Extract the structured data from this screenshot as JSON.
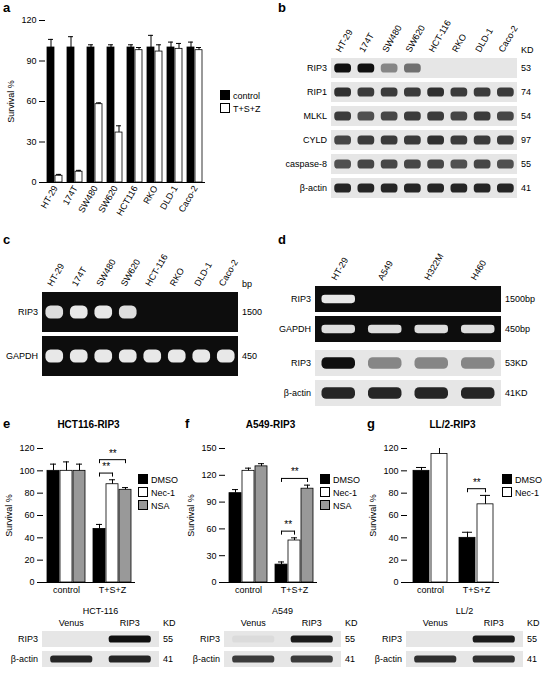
{
  "chart_data": [
    {
      "panel": "a",
      "type": "bar",
      "y_label": "Survival %",
      "categories": [
        "HT-29",
        "174T",
        "SW480",
        "SW620",
        "HCT116",
        "RKO",
        "DLD-1",
        "Caco-2"
      ],
      "ylim": [
        0,
        120
      ],
      "yticks": [
        0,
        30,
        60,
        90,
        120
      ],
      "legend": "right",
      "series": [
        {
          "name": "control",
          "color": "#000000",
          "values": [
            100,
            100,
            100,
            100,
            100,
            100,
            100,
            100
          ],
          "errors": [
            6,
            8,
            2,
            2,
            2,
            9,
            4,
            4
          ]
        },
        {
          "name": "T+S+Z",
          "color": "#ffffff",
          "values": [
            5,
            8,
            58,
            37,
            98,
            97,
            99,
            98
          ],
          "errors": [
            1,
            1,
            1,
            5,
            2,
            5,
            4,
            2
          ]
        }
      ]
    },
    {
      "panel": "e",
      "type": "bar",
      "title": "HCT116-RIP3",
      "y_label": "Survival %",
      "categories": [
        "control",
        "T+S+Z"
      ],
      "ylim": [
        0,
        120
      ],
      "yticks": [
        0,
        20,
        40,
        60,
        80,
        100,
        120
      ],
      "legend": "right",
      "series": [
        {
          "name": "DMSO",
          "color": "#000000",
          "values": [
            100,
            48
          ],
          "errors": [
            6,
            4
          ]
        },
        {
          "name": "Nec-1",
          "color": "#ffffff",
          "values": [
            100,
            88
          ],
          "errors": [
            8,
            4
          ]
        },
        {
          "name": "NSA",
          "color": "#999999",
          "values": [
            100,
            83
          ],
          "errors": [
            6,
            2
          ]
        }
      ],
      "annotations": [
        {
          "text": "**",
          "category": "T+S+Z",
          "between": [
            "DMSO",
            "Nec-1"
          ]
        },
        {
          "text": "**",
          "category": "T+S+Z",
          "between": [
            "DMSO",
            "NSA"
          ]
        }
      ]
    },
    {
      "panel": "f",
      "type": "bar",
      "title": "A549-RIP3",
      "y_label": "Survival %",
      "categories": [
        "control",
        "T+S+Z"
      ],
      "ylim": [
        0,
        150
      ],
      "yticks": [
        0,
        30,
        60,
        90,
        120,
        150
      ],
      "legend": "right",
      "series": [
        {
          "name": "DMSO",
          "color": "#000000",
          "values": [
            100,
            20
          ],
          "errors": [
            4,
            3
          ]
        },
        {
          "name": "Nec-1",
          "color": "#ffffff",
          "values": [
            125,
            47
          ],
          "errors": [
            3,
            3
          ]
        },
        {
          "name": "NSA",
          "color": "#999999",
          "values": [
            130,
            105
          ],
          "errors": [
            3,
            4
          ]
        }
      ],
      "annotations": [
        {
          "text": "**",
          "category": "T+S+Z",
          "between": [
            "DMSO",
            "Nec-1"
          ]
        },
        {
          "text": "**",
          "category": "T+S+Z",
          "between": [
            "DMSO",
            "NSA"
          ]
        }
      ]
    },
    {
      "panel": "g",
      "type": "bar",
      "title": "LL/2-RIP3",
      "y_label": "Survival %",
      "categories": [
        "control",
        "T+S+Z"
      ],
      "ylim": [
        0,
        120
      ],
      "yticks": [
        0,
        20,
        40,
        60,
        80,
        100,
        120
      ],
      "legend": "right",
      "series": [
        {
          "name": "DMSO",
          "color": "#000000",
          "values": [
            100,
            40
          ],
          "errors": [
            3,
            5
          ]
        },
        {
          "name": "Nec-1",
          "color": "#ffffff",
          "values": [
            115,
            70
          ],
          "errors": [
            6,
            8
          ]
        }
      ],
      "annotations": [
        {
          "text": "**",
          "category": "T+S+Z",
          "between": [
            "DMSO",
            "Nec-1"
          ]
        }
      ]
    }
  ],
  "blots": [
    {
      "panel": "b",
      "lanes": [
        "HT-29",
        "174T",
        "SW480",
        "SW620",
        "HCT-116",
        "RKO",
        "DLD-1",
        "Caco-2"
      ],
      "unit": "KD",
      "sections": [
        {
          "type": "western",
          "rows": [
            {
              "label": "RIP3",
              "size": 53,
              "bands": [
                1,
                1,
                0.45,
                0.55,
                0,
                0,
                0,
                0
              ]
            },
            {
              "label": "RIP1",
              "size": 74,
              "bands": [
                0.85,
                0.8,
                0.8,
                0.8,
                0.85,
                0.8,
                0.8,
                0.8
              ]
            },
            {
              "label": "MLKL",
              "size": 54,
              "bands": [
                0.8,
                0.7,
                0.75,
                0.8,
                0.8,
                0.75,
                0.8,
                0.75
              ]
            },
            {
              "label": "CYLD",
              "size": 97,
              "bands": [
                0.75,
                0.8,
                0.8,
                0.8,
                0.85,
                0.8,
                0.8,
                0.8
              ]
            },
            {
              "label": "caspase-8",
              "size": 55,
              "bands": [
                0.7,
                0.75,
                0.75,
                0.75,
                0.75,
                0.7,
                0.75,
                0.7
              ]
            },
            {
              "label": "β-actin",
              "size": 41,
              "bands": [
                0.9,
                0.9,
                0.9,
                0.9,
                0.9,
                0.9,
                0.9,
                0.9
              ]
            }
          ]
        }
      ]
    },
    {
      "panel": "c",
      "lanes": [
        "HT-29",
        "174T",
        "SW480",
        "SW620",
        "HCT-116",
        "RKO",
        "DLD-1",
        "Caco-2"
      ],
      "unit": "bp",
      "sections": [
        {
          "type": "gel",
          "rows": [
            {
              "label": "RIP3",
              "size": 1500,
              "bands": [
                0.9,
                0.95,
                0.95,
                0.9,
                0,
                0,
                0,
                0
              ]
            },
            {
              "label": "GAPDH",
              "size": 450,
              "bands": [
                0.95,
                0.95,
                0.95,
                0.95,
                0.95,
                0.95,
                0.95,
                0.95
              ]
            }
          ]
        }
      ]
    },
    {
      "panel": "d",
      "lanes": [
        "HT-29",
        "A549",
        "H322M",
        "H460"
      ],
      "sections": [
        {
          "type": "gel",
          "rows": [
            {
              "label": "RIP3",
              "size": 1500,
              "unit": "bp",
              "bands": [
                0.95,
                0,
                0,
                0
              ]
            },
            {
              "label": "GAPDH",
              "size": 450,
              "unit": "bp",
              "bands": [
                0.9,
                0.9,
                0.9,
                0.9
              ]
            }
          ]
        },
        {
          "type": "western",
          "rows": [
            {
              "label": "RIP3",
              "size": 53,
              "unit": "KD",
              "bands": [
                1,
                0.45,
                0.45,
                0.45
              ]
            },
            {
              "label": "β-actin",
              "size": 41,
              "unit": "KD",
              "bands": [
                0.9,
                0.9,
                0.9,
                0.9
              ]
            }
          ]
        }
      ]
    },
    {
      "title": "HCT-116",
      "lanes": [
        "Venus",
        "RIP3"
      ],
      "unit": "KD",
      "sections": [
        {
          "type": "western",
          "rows": [
            {
              "label": "RIP3",
              "size": 55,
              "bands": [
                0,
                1
              ]
            },
            {
              "label": "β-actin",
              "size": 41,
              "bands": [
                0.9,
                0.9
              ]
            }
          ]
        }
      ]
    },
    {
      "title": "A549",
      "lanes": [
        "Venus",
        "RIP3"
      ],
      "unit": "KD",
      "sections": [
        {
          "type": "western",
          "rows": [
            {
              "label": "RIP3",
              "size": 55,
              "bands": [
                0.05,
                0.95
              ]
            },
            {
              "label": "β-actin",
              "size": 41,
              "bands": [
                0.8,
                0.8
              ]
            }
          ]
        }
      ]
    },
    {
      "title": "LL/2",
      "lanes": [
        "Venus",
        "RIP3"
      ],
      "unit": "KD",
      "sections": [
        {
          "type": "western",
          "rows": [
            {
              "label": "RIP3",
              "size": 55,
              "bands": [
                0,
                0.95
              ]
            },
            {
              "label": "β-actin",
              "size": 41,
              "bands": [
                0.85,
                0.85
              ]
            }
          ]
        }
      ]
    }
  ]
}
